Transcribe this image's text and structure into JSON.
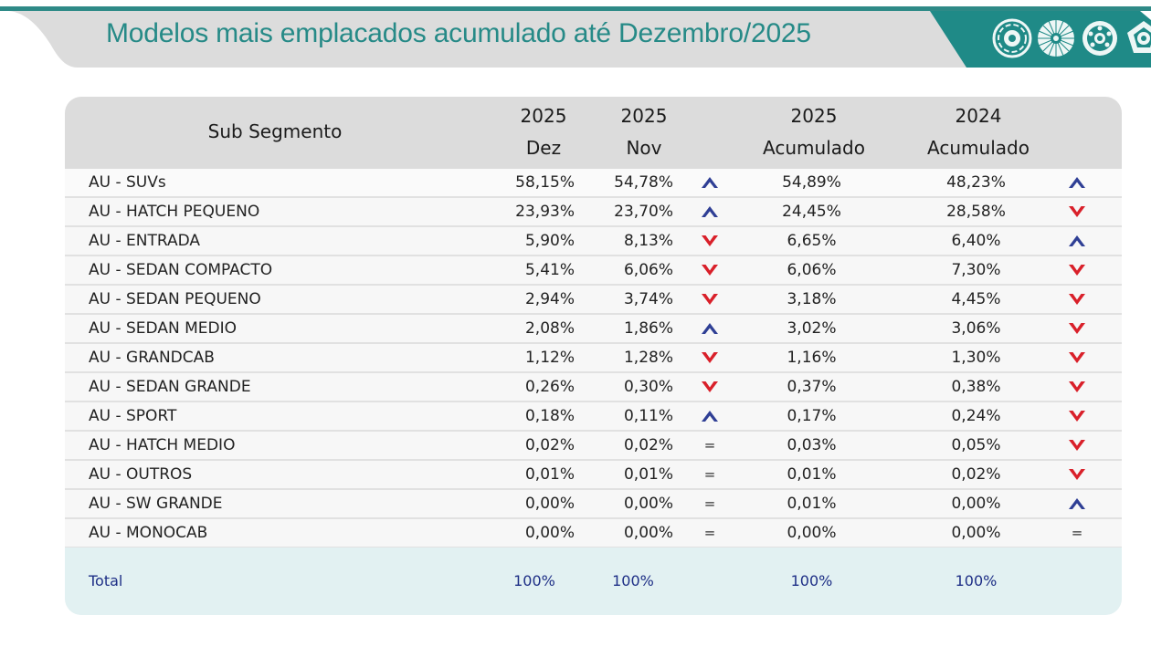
{
  "header": {
    "title": "Modelos mais emplacados acumulado até Dezembro/2025",
    "logo_icons": [
      "wheel-icon",
      "wheel-icon",
      "wheel-icon",
      "wheel-icon"
    ],
    "colors": {
      "teal": "#1f8a87",
      "gray": "#dcdcdc",
      "title": "#268a87"
    }
  },
  "table": {
    "columns": {
      "sub_segmento": "Sub Segmento",
      "dez": {
        "year": "2025",
        "label": "Dez"
      },
      "nov": {
        "year": "2025",
        "label": "Nov"
      },
      "acc_2025": {
        "year": "2025",
        "label": "Acumulado"
      },
      "acc_2024": {
        "year": "2024",
        "label": "Acumulado"
      }
    },
    "indicator_colors": {
      "up": "#2f3f95",
      "down": "#d9202a",
      "equal": "#333333"
    },
    "rows": [
      {
        "name": "AU - SUVs",
        "dez": "58,15%",
        "nov": "54,78%",
        "trend_month": "up",
        "acc_2025": "54,89%",
        "acc_2024": "48,23%",
        "trend_year": "up"
      },
      {
        "name": "AU - HATCH PEQUENO",
        "dez": "23,93%",
        "nov": "23,70%",
        "trend_month": "up",
        "acc_2025": "24,45%",
        "acc_2024": "28,58%",
        "trend_year": "down"
      },
      {
        "name": "AU - ENTRADA",
        "dez": "5,90%",
        "nov": "8,13%",
        "trend_month": "down",
        "acc_2025": "6,65%",
        "acc_2024": "6,40%",
        "trend_year": "up"
      },
      {
        "name": "AU - SEDAN COMPACTO",
        "dez": "5,41%",
        "nov": "6,06%",
        "trend_month": "down",
        "acc_2025": "6,06%",
        "acc_2024": "7,30%",
        "trend_year": "down"
      },
      {
        "name": "AU - SEDAN PEQUENO",
        "dez": "2,94%",
        "nov": "3,74%",
        "trend_month": "down",
        "acc_2025": "3,18%",
        "acc_2024": "4,45%",
        "trend_year": "down"
      },
      {
        "name": "AU - SEDAN MEDIO",
        "dez": "2,08%",
        "nov": "1,86%",
        "trend_month": "up",
        "acc_2025": "3,02%",
        "acc_2024": "3,06%",
        "trend_year": "down"
      },
      {
        "name": "AU - GRANDCAB",
        "dez": "1,12%",
        "nov": "1,28%",
        "trend_month": "down",
        "acc_2025": "1,16%",
        "acc_2024": "1,30%",
        "trend_year": "down"
      },
      {
        "name": "AU - SEDAN GRANDE",
        "dez": "0,26%",
        "nov": "0,30%",
        "trend_month": "down",
        "acc_2025": "0,37%",
        "acc_2024": "0,38%",
        "trend_year": "down"
      },
      {
        "name": "AU - SPORT",
        "dez": "0,18%",
        "nov": "0,11%",
        "trend_month": "up",
        "acc_2025": "0,17%",
        "acc_2024": "0,24%",
        "trend_year": "down"
      },
      {
        "name": "AU - HATCH MEDIO",
        "dez": "0,02%",
        "nov": "0,02%",
        "trend_month": "equal",
        "acc_2025": "0,03%",
        "acc_2024": "0,05%",
        "trend_year": "down"
      },
      {
        "name": "AU - OUTROS",
        "dez": "0,01%",
        "nov": "0,01%",
        "trend_month": "equal",
        "acc_2025": "0,01%",
        "acc_2024": "0,02%",
        "trend_year": "down"
      },
      {
        "name": "AU - SW GRANDE",
        "dez": "0,00%",
        "nov": "0,00%",
        "trend_month": "equal",
        "acc_2025": "0,01%",
        "acc_2024": "0,00%",
        "trend_year": "up"
      },
      {
        "name": "AU - MONOCAB",
        "dez": "0,00%",
        "nov": "0,00%",
        "trend_month": "equal",
        "acc_2025": "0,00%",
        "acc_2024": "0,00%",
        "trend_year": "equal"
      }
    ],
    "equal_symbol": "=",
    "total": {
      "label": "Total",
      "dez": "100%",
      "nov": "100%",
      "acc_2025": "100%",
      "acc_2024": "100%"
    }
  }
}
